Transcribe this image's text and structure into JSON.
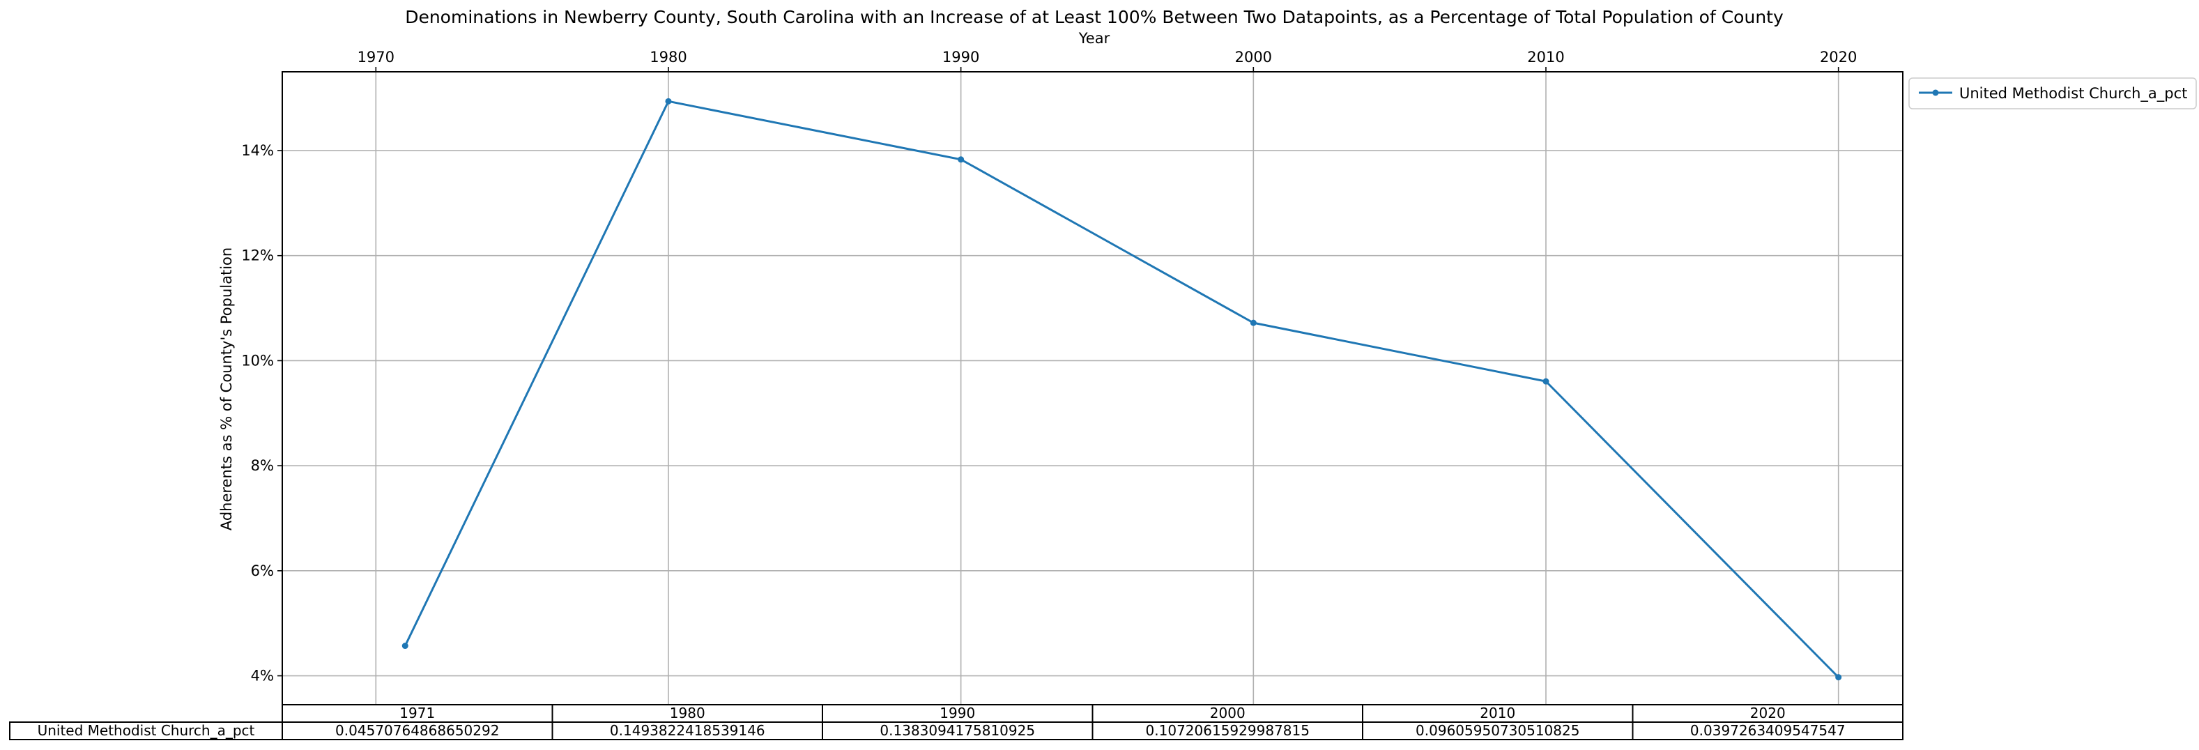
{
  "chart_data": {
    "type": "line",
    "title": "Denominations in Newberry County, South Carolina with an Increase of at Least 100% Between Two Datapoints, as a Percentage of Total Population of County",
    "xlabel": "Year",
    "ylabel": "Adherents as % of County's Population",
    "x_ticks": [
      "1970",
      "1980",
      "1990",
      "2000",
      "2010",
      "2020"
    ],
    "y_ticks": [
      "4%",
      "6%",
      "8%",
      "10%",
      "12%",
      "14%"
    ],
    "xlim": [
      1966.8,
      2022.2
    ],
    "ylim": [
      0.0345,
      0.155
    ],
    "grid": true,
    "legend_position": "outside top-right",
    "colors": {
      "series": "#1f77b4",
      "grid": "#b0b0b0"
    },
    "series": [
      {
        "name": "United Methodist Church_a_pct",
        "x": [
          1971,
          1980,
          1990,
          2000,
          2010,
          2020
        ],
        "y": [
          0.04570764868650292,
          0.1493822418539146,
          0.1383094175810925,
          0.10720615929987815,
          0.09605950730510825,
          0.0397263409547547
        ]
      }
    ],
    "table": {
      "col_labels": [
        "1971",
        "1980",
        "1990",
        "2000",
        "2010",
        "2020"
      ],
      "row_label": "United Methodist Church_a_pct",
      "cells": [
        "0.04570764868650292",
        "0.1493822418539146",
        "0.1383094175810925",
        "0.10720615929987815",
        "0.09605950730510825",
        "0.0397263409547547"
      ]
    }
  }
}
